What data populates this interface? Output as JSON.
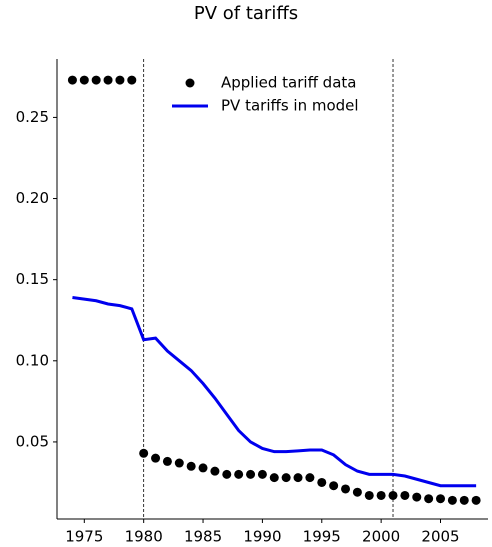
{
  "chart_data": {
    "type": "line",
    "title": "PV of tariffs",
    "x": [
      1974,
      1975,
      1976,
      1977,
      1978,
      1979,
      1980,
      1981,
      1982,
      1983,
      1984,
      1985,
      1986,
      1987,
      1988,
      1989,
      1990,
      1991,
      1992,
      1993,
      1994,
      1995,
      1996,
      1997,
      1998,
      1999,
      2000,
      2001,
      2002,
      2003,
      2004,
      2005,
      2006,
      2007,
      2008
    ],
    "series": [
      {
        "name": "Applied tariff data",
        "kind": "scatter",
        "color": "#000000",
        "values": [
          0.273,
          0.273,
          0.273,
          0.273,
          0.273,
          0.273,
          0.043,
          0.04,
          0.038,
          0.037,
          0.035,
          0.034,
          0.032,
          0.03,
          0.03,
          0.03,
          0.03,
          0.028,
          0.028,
          0.028,
          0.028,
          0.025,
          0.023,
          0.021,
          0.019,
          0.017,
          0.017,
          0.017,
          0.017,
          0.016,
          0.015,
          0.015,
          0.014,
          0.014,
          0.014
        ]
      },
      {
        "name": "PV tariffs in model",
        "kind": "line",
        "color": "#0000ee",
        "values": [
          0.139,
          0.138,
          0.137,
          0.135,
          0.134,
          0.132,
          0.113,
          0.114,
          0.106,
          0.1,
          0.094,
          0.086,
          0.077,
          0.067,
          0.057,
          0.05,
          0.046,
          0.044,
          0.044,
          0.0445,
          0.045,
          0.045,
          0.042,
          0.036,
          0.032,
          0.03,
          0.03,
          0.03,
          0.029,
          0.027,
          0.025,
          0.023,
          0.023,
          0.023,
          0.023
        ]
      }
    ],
    "vlines": [
      1980,
      2001
    ],
    "xlim": [
      1972.7,
      2009.0
    ],
    "xticks": [
      1975,
      1980,
      1985,
      1990,
      1995,
      2000,
      2005
    ],
    "ylim": [
      0.0025,
      0.286
    ],
    "yticks": [
      {
        "value": 0.05,
        "label": "0.05"
      },
      {
        "value": 0.1,
        "label": "0.10"
      },
      {
        "value": 0.15,
        "label": "0.15"
      },
      {
        "value": 0.2,
        "label": "0.20"
      },
      {
        "value": 0.25,
        "label": "0.25"
      }
    ],
    "legend": "upper right"
  }
}
